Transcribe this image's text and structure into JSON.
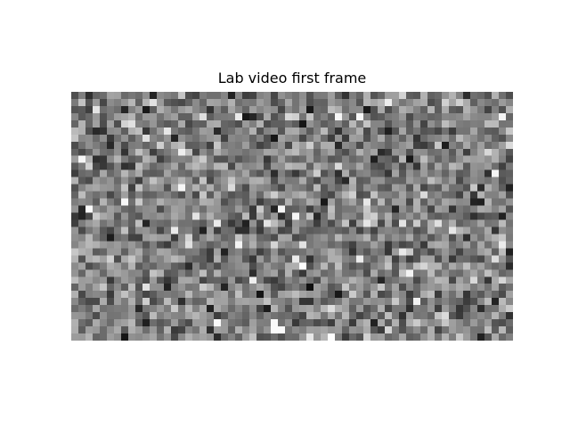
{
  "figure": {
    "title": "Lab video first frame"
  },
  "image": {
    "content": "grayscale random noise frame",
    "colormap": "gray",
    "grid_columns": 62,
    "grid_rows": 35,
    "seed": 20240517,
    "background": "#ffffff"
  }
}
